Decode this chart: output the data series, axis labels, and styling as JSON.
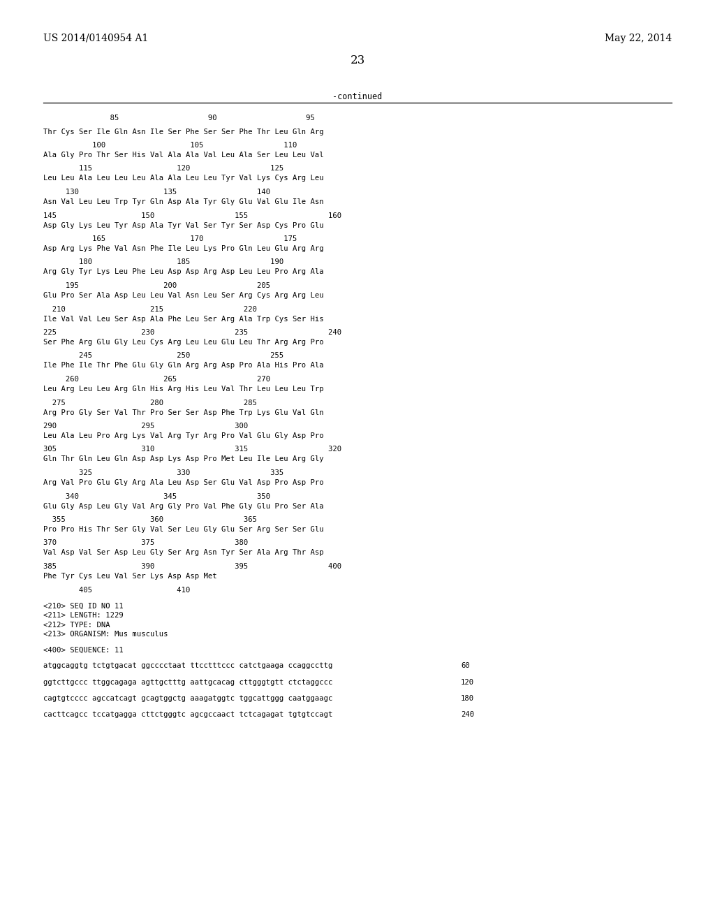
{
  "page_header_left": "US 2014/0140954 A1",
  "page_header_right": "May 22, 2014",
  "page_number": "23",
  "continued_label": "-continued",
  "background_color": "#ffffff",
  "text_color": "#000000",
  "sequence_lines": [
    {
      "type": "ruler",
      "text": "               85                    90                    95"
    },
    {
      "type": "seq",
      "text": "Thr Cys Ser Ile Gln Asn Ile Ser Phe Ser Ser Phe Thr Leu Gln Arg"
    },
    {
      "type": "num",
      "text": "           100                   105                  110"
    },
    {
      "type": "seq",
      "text": "Ala Gly Pro Thr Ser His Val Ala Ala Val Leu Ala Ser Leu Leu Val"
    },
    {
      "type": "num",
      "text": "        115                   120                  125"
    },
    {
      "type": "seq",
      "text": "Leu Leu Ala Leu Leu Leu Ala Ala Leu Leu Tyr Val Lys Cys Arg Leu"
    },
    {
      "type": "num",
      "text": "     130                   135                  140"
    },
    {
      "type": "seq",
      "text": "Asn Val Leu Leu Trp Tyr Gln Asp Ala Tyr Gly Glu Val Glu Ile Asn"
    },
    {
      "type": "num",
      "text": "145                   150                  155                  160"
    },
    {
      "type": "seq",
      "text": "Asp Gly Lys Leu Tyr Asp Ala Tyr Val Ser Tyr Ser Asp Cys Pro Glu"
    },
    {
      "type": "num",
      "text": "           165                   170                  175"
    },
    {
      "type": "seq",
      "text": "Asp Arg Lys Phe Val Asn Phe Ile Leu Lys Pro Gln Leu Glu Arg Arg"
    },
    {
      "type": "num",
      "text": "        180                   185                  190"
    },
    {
      "type": "seq",
      "text": "Arg Gly Tyr Lys Leu Phe Leu Asp Asp Arg Asp Leu Leu Pro Arg Ala"
    },
    {
      "type": "num",
      "text": "     195                   200                  205"
    },
    {
      "type": "seq",
      "text": "Glu Pro Ser Ala Asp Leu Leu Val Asn Leu Ser Arg Cys Arg Arg Leu"
    },
    {
      "type": "num",
      "text": "  210                   215                  220"
    },
    {
      "type": "seq",
      "text": "Ile Val Val Leu Ser Asp Ala Phe Leu Ser Arg Ala Trp Cys Ser His"
    },
    {
      "type": "num",
      "text": "225                   230                  235                  240"
    },
    {
      "type": "seq",
      "text": "Ser Phe Arg Glu Gly Leu Cys Arg Leu Leu Glu Leu Thr Arg Arg Pro"
    },
    {
      "type": "num",
      "text": "        245                   250                  255"
    },
    {
      "type": "seq",
      "text": "Ile Phe Ile Thr Phe Glu Gly Gln Arg Arg Asp Pro Ala His Pro Ala"
    },
    {
      "type": "num",
      "text": "     260                   265                  270"
    },
    {
      "type": "seq",
      "text": "Leu Arg Leu Leu Arg Gln His Arg His Leu Val Thr Leu Leu Leu Trp"
    },
    {
      "type": "num",
      "text": "  275                   280                  285"
    },
    {
      "type": "seq",
      "text": "Arg Pro Gly Ser Val Thr Pro Ser Ser Asp Phe Trp Lys Glu Val Gln"
    },
    {
      "type": "num",
      "text": "290                   295                  300"
    },
    {
      "type": "seq",
      "text": "Leu Ala Leu Pro Arg Lys Val Arg Tyr Arg Pro Val Glu Gly Asp Pro"
    },
    {
      "type": "num",
      "text": "305                   310                  315                  320"
    },
    {
      "type": "seq",
      "text": "Gln Thr Gln Leu Gln Asp Asp Lys Asp Pro Met Leu Ile Leu Arg Gly"
    },
    {
      "type": "num",
      "text": "        325                   330                  335"
    },
    {
      "type": "seq",
      "text": "Arg Val Pro Glu Gly Arg Ala Leu Asp Ser Glu Val Asp Pro Asp Pro"
    },
    {
      "type": "num",
      "text": "     340                   345                  350"
    },
    {
      "type": "seq",
      "text": "Glu Gly Asp Leu Gly Val Arg Gly Pro Val Phe Gly Glu Pro Ser Ala"
    },
    {
      "type": "num",
      "text": "  355                   360                  365"
    },
    {
      "type": "seq",
      "text": "Pro Pro His Thr Ser Gly Val Ser Leu Gly Glu Ser Arg Ser Ser Glu"
    },
    {
      "type": "num",
      "text": "370                   375                  380"
    },
    {
      "type": "seq",
      "text": "Val Asp Val Ser Asp Leu Gly Ser Arg Asn Tyr Ser Ala Arg Thr Asp"
    },
    {
      "type": "num",
      "text": "385                   390                  395                  400"
    },
    {
      "type": "seq",
      "text": "Phe Tyr Cys Leu Val Ser Lys Asp Asp Met"
    },
    {
      "type": "num",
      "text": "        405                   410"
    },
    {
      "type": "blank"
    },
    {
      "type": "meta",
      "text": "<210> SEQ ID NO 11"
    },
    {
      "type": "meta",
      "text": "<211> LENGTH: 1229"
    },
    {
      "type": "meta",
      "text": "<212> TYPE: DNA"
    },
    {
      "type": "meta",
      "text": "<213> ORGANISM: Mus musculus"
    },
    {
      "type": "blank"
    },
    {
      "type": "meta",
      "text": "<400> SEQUENCE: 11"
    },
    {
      "type": "blank"
    },
    {
      "type": "dna",
      "text": "atggcaggtg tctgtgacat ggcccctaat ttcctttccc catctgaaga ccaggccttg",
      "num": "60"
    },
    {
      "type": "blank"
    },
    {
      "type": "dna",
      "text": "ggtcttgccc ttggcagaga agttgctttg aattgcacag cttgggtgtt ctctaggccc",
      "num": "120"
    },
    {
      "type": "blank"
    },
    {
      "type": "dna",
      "text": "cagtgtcccc agccatcagt gcagtggctg aaagatggtc tggcattggg caatggaagc",
      "num": "180"
    },
    {
      "type": "blank"
    },
    {
      "type": "dna",
      "text": "cacttcagcc tccatgagga cttctgggtc agcgccaact tctcagagat tgtgtccagt",
      "num": "240"
    }
  ]
}
